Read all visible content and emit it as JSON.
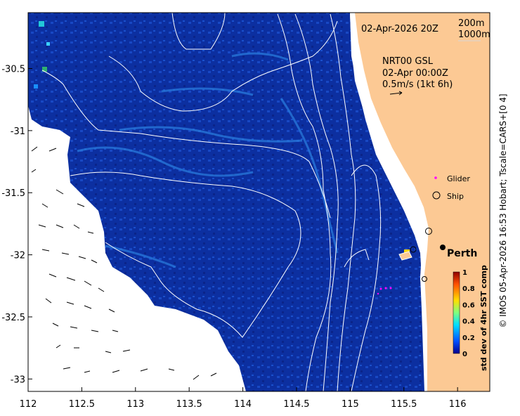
{
  "map": {
    "date_label": "02-Apr-2026 20Z",
    "contour_legend": [
      "200m",
      "1000m"
    ],
    "current_info": [
      "NRT00 GSL",
      "02-Apr 00:00Z",
      "0.5m/s (1kt 6h)"
    ],
    "legend": {
      "glider": "Glider",
      "ship": "Ship"
    },
    "city": "Perth",
    "lon_ticks": [
      "112",
      "112.5",
      "113",
      "113.5",
      "114",
      "114.5",
      "115",
      "115.5",
      "116"
    ],
    "lat_ticks": [
      "-30.5",
      "-31",
      "-31.5",
      "-32",
      "-32.5",
      "-33"
    ],
    "lon_range": [
      112,
      116.3
    ],
    "lat_range": [
      -33.1,
      -30.05
    ],
    "colors": {
      "land": "#fcc994",
      "ocean": "#0c2fa0",
      "glider": "#ff00ff"
    }
  },
  "colorbar": {
    "label": "std dev of 4hr SST comp",
    "ticks": [
      "0",
      "0.2",
      "0.4",
      "0.6",
      "0.8",
      "1"
    ],
    "range": [
      0,
      1
    ],
    "colors": [
      "#00008f",
      "#0050ff",
      "#00dfff",
      "#7fff7f",
      "#ffdf00",
      "#ff5000",
      "#8f0000"
    ]
  },
  "credit": "© IMOS 05-Apr-2026 16:53 Hobart; Tscale=CARS+[0 4]"
}
